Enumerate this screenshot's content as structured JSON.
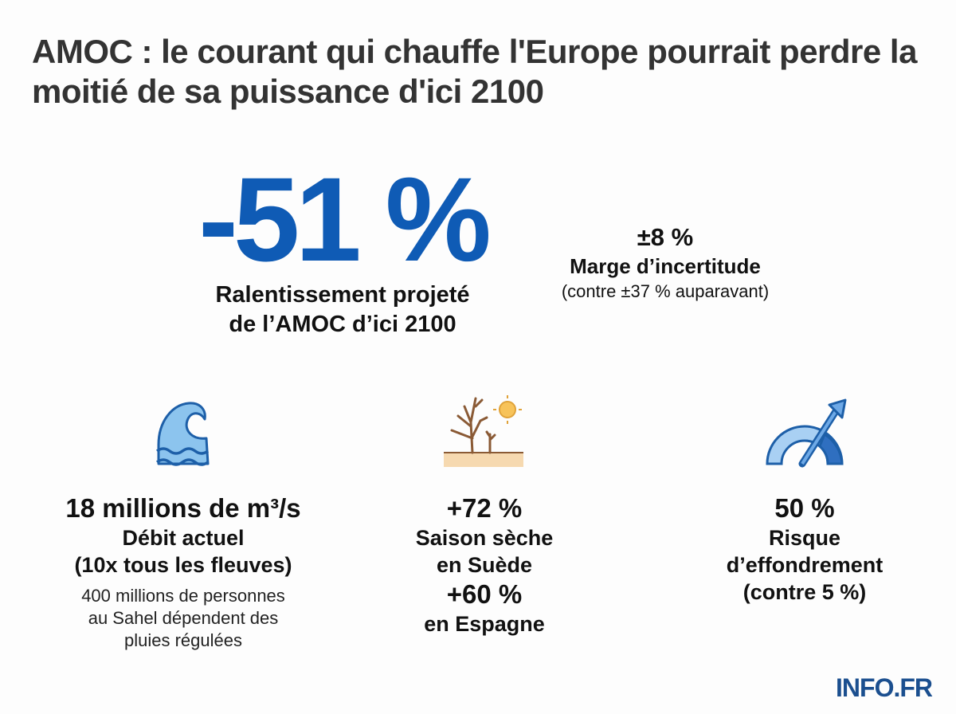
{
  "title": "AMOC : le courant qui chauffe l'Europe pourrait perdre la moitié de sa puissance d'ici 2100",
  "headline": {
    "value": "-51 %",
    "caption_1": "Ralentissement projeté",
    "caption_2": "de l’AMOC d’ici 2100",
    "color": "#0f5bb5"
  },
  "uncertainty": {
    "value": "±8 %",
    "label": "Marge d’incertitude",
    "note": "(contre ±37 % auparavant)"
  },
  "stats": [
    {
      "icon": "wave-icon",
      "value": "18 millions de m³/s",
      "label_1": "Débit actuel",
      "label_2": "(10x tous les fleuves)",
      "note_1": "400 millions de personnes",
      "note_2": "au Sahel dépendent des",
      "note_3": "pluies régulées"
    },
    {
      "icon": "dry-tree-sun-icon",
      "value": "+72 %",
      "label_1": "Saison sèche",
      "label_2": "en Suède",
      "value_2": "+60 %",
      "label_3": "en Espagne"
    },
    {
      "icon": "gauge-arrow-icon",
      "value": "50 %",
      "label_1": "Risque",
      "label_2": "d’effondrement",
      "label_3": "(contre 5 %)"
    }
  ],
  "logo": "INFO.FR"
}
